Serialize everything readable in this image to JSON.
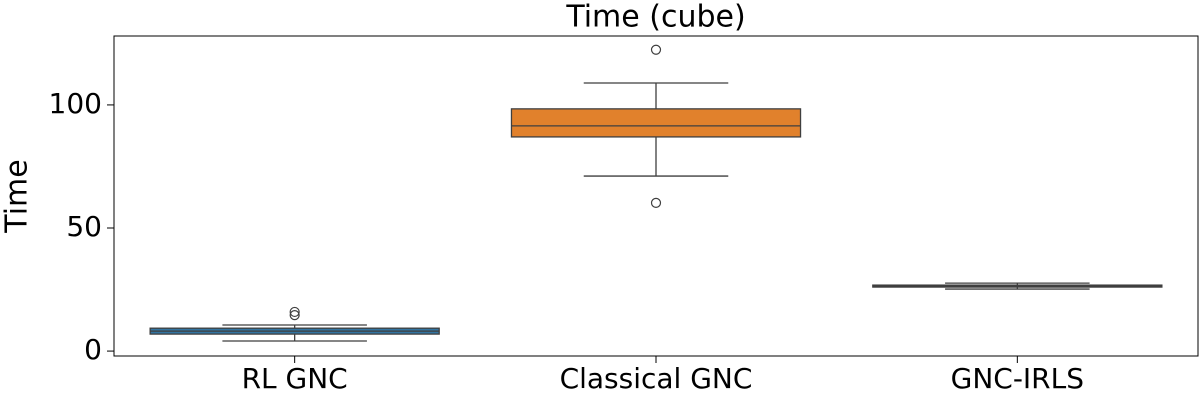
{
  "chart_data": {
    "type": "box",
    "title": "Time (cube)",
    "y_label": "Time",
    "categories": [
      "RL GNC",
      "Classical GNC",
      "GNC-IRLS"
    ],
    "boxes": [
      {
        "color": "#3274a1",
        "min": 4.1,
        "q1": 6.9,
        "median": 8.1,
        "q3": 9.3,
        "max": 10.6,
        "outliers": [
          14.6,
          15.9
        ]
      },
      {
        "color": "#e1812c",
        "min": 71.1,
        "q1": 87.0,
        "median": 91.5,
        "q3": 98.4,
        "max": 108.9,
        "outliers": [
          60.2,
          122.4
        ]
      },
      {
        "color": "#3a923a",
        "min": 25.2,
        "q1": 26.0,
        "median": 26.4,
        "q3": 26.8,
        "max": 27.6,
        "outliers": []
      }
    ],
    "ylim": [
      -2,
      128
    ],
    "yticks": [
      0,
      50,
      100
    ]
  }
}
